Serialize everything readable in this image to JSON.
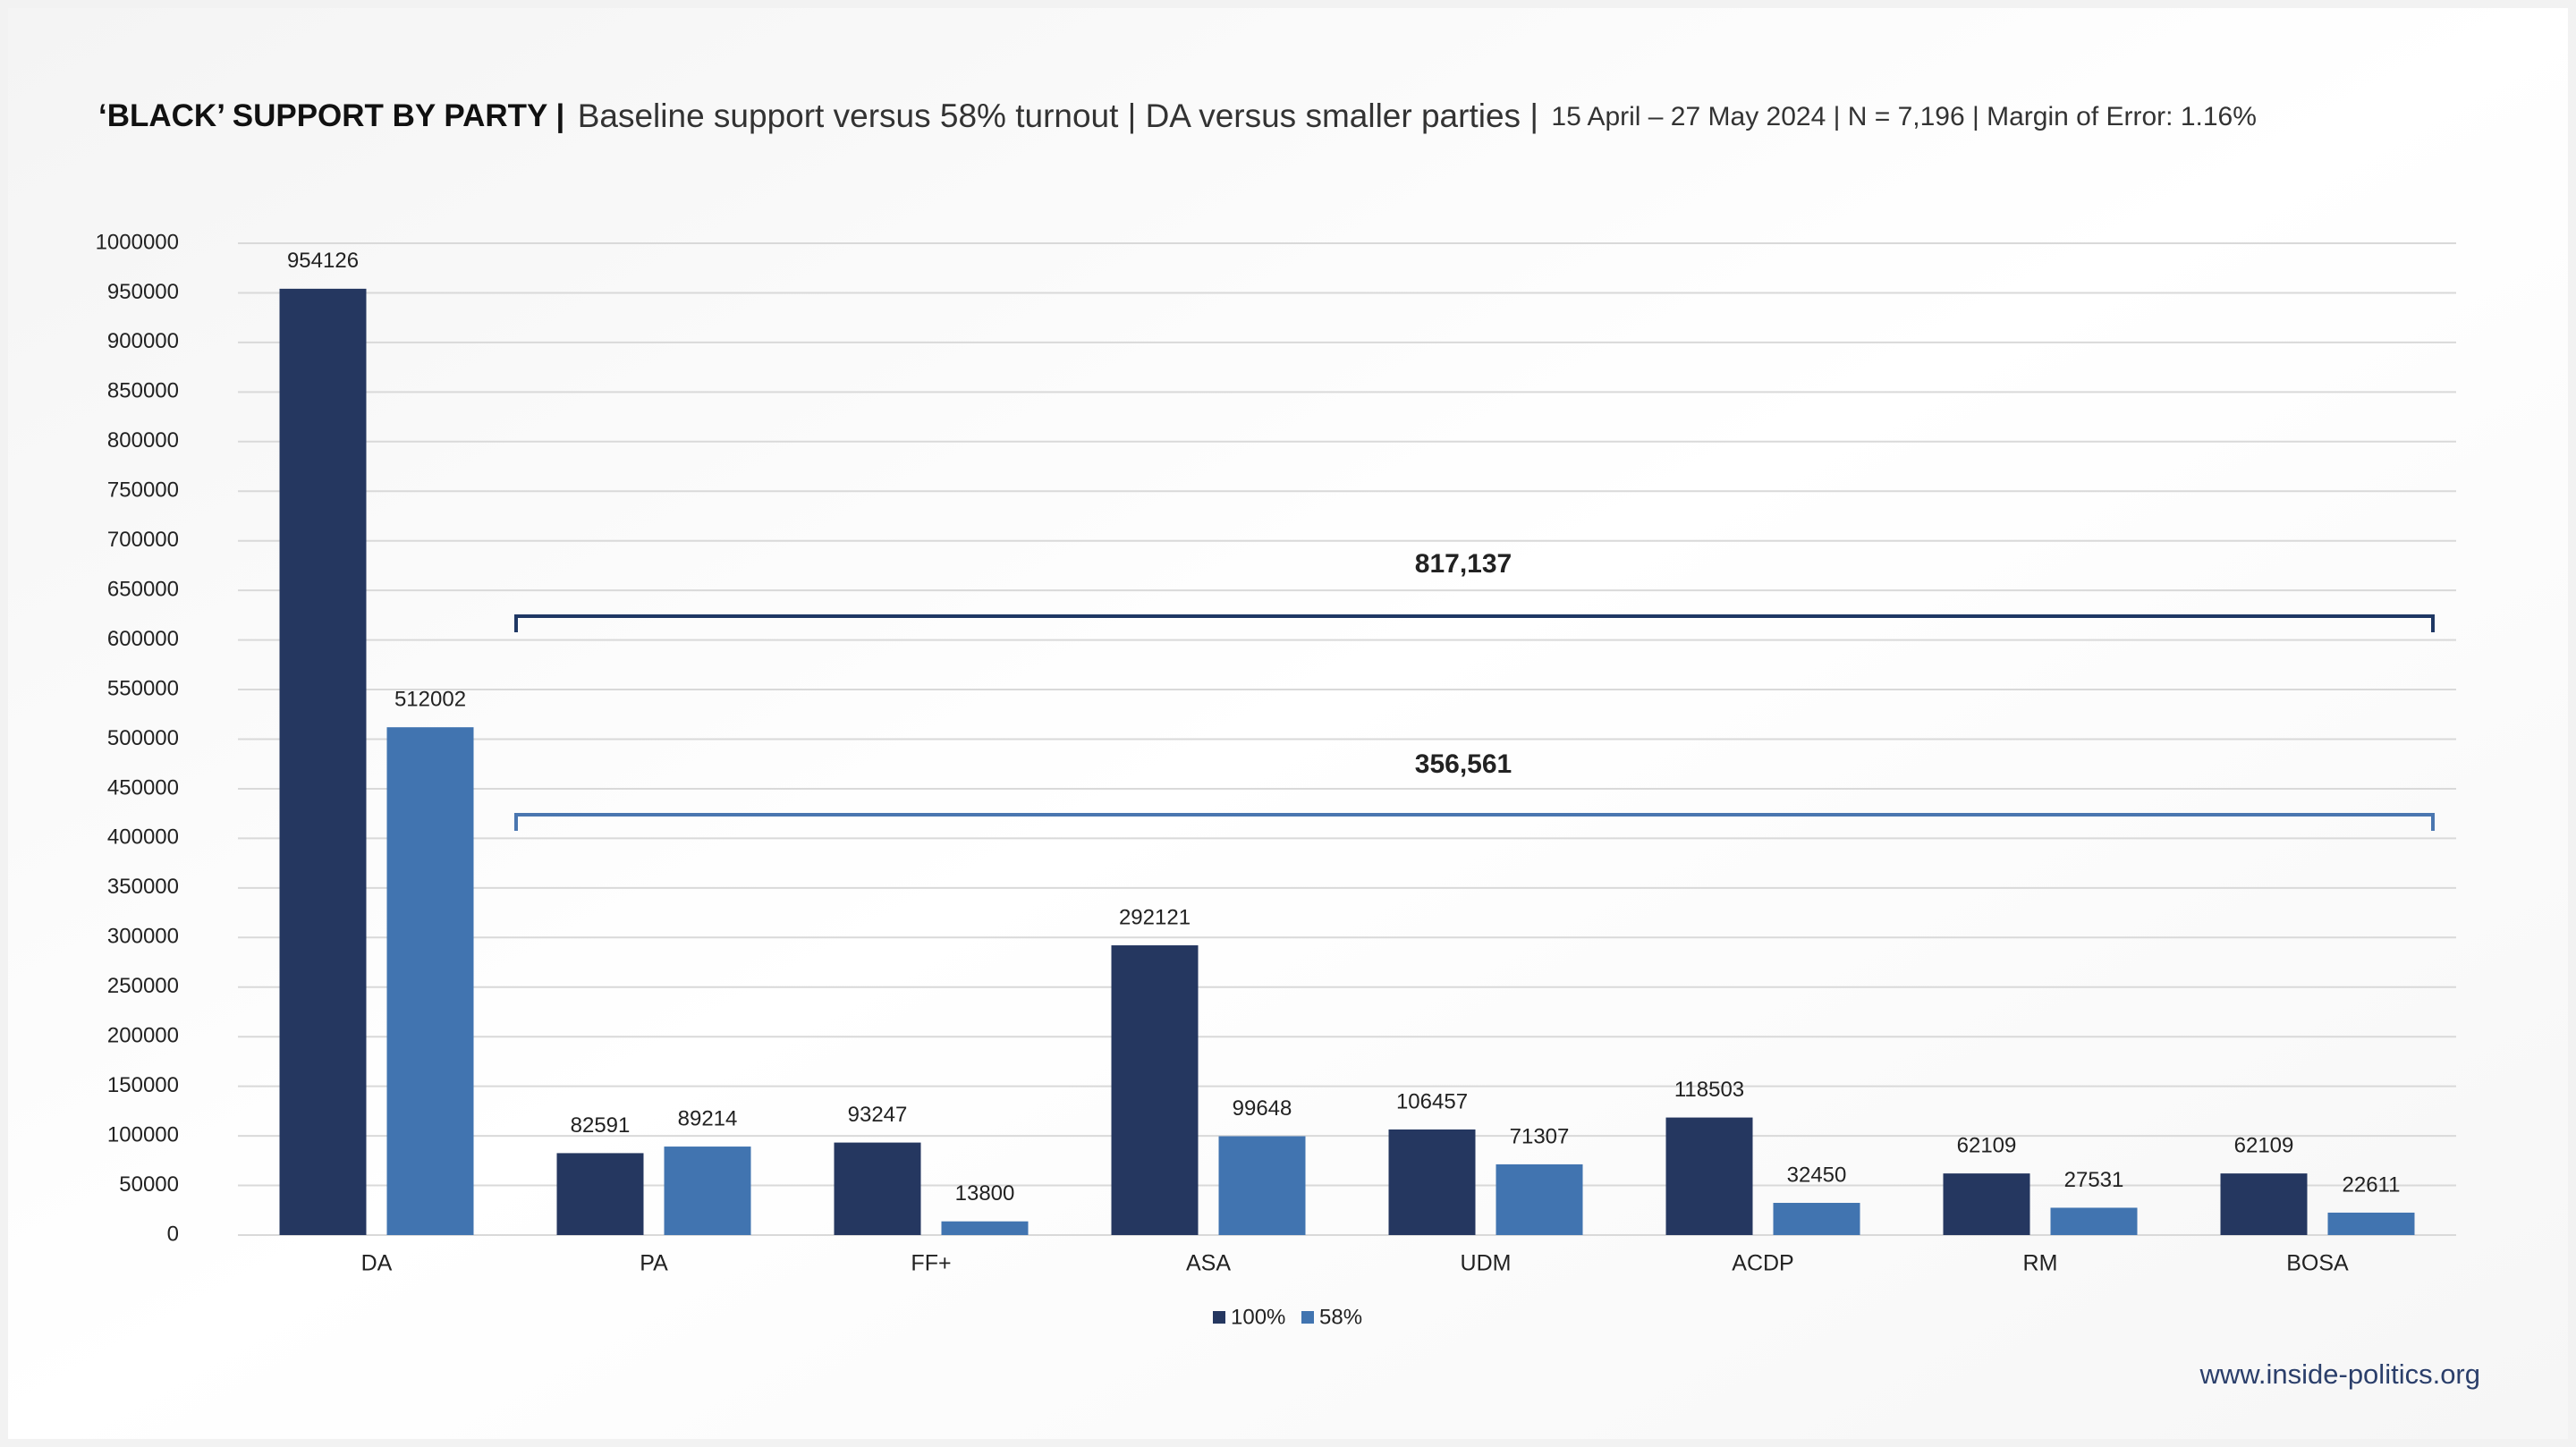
{
  "chart_data": {
    "type": "bar",
    "title": "‘BLACK’ SUPPORT BY PARTY |",
    "subtitle": "Baseline support versus 58% turnout | DA versus smaller parties |",
    "note": "15 April – 27 May 2024 | N = 7,196 | Margin of Error: 1.16%",
    "categories": [
      "DA",
      "PA",
      "FF+",
      "ASA",
      "UDM",
      "ACDP",
      "RM",
      "BOSA"
    ],
    "series": [
      {
        "name": "100%",
        "color": "#253760",
        "values": [
          954126,
          82591,
          93247,
          292121,
          106457,
          118503,
          62109,
          62109
        ]
      },
      {
        "name": "58%",
        "color": "#4174b0",
        "values": [
          512002,
          89214,
          13800,
          99648,
          71307,
          32450,
          27531,
          22611
        ]
      }
    ],
    "ylim": [
      0,
      1000000
    ],
    "yticks": [
      0,
      50000,
      100000,
      150000,
      200000,
      250000,
      300000,
      350000,
      400000,
      450000,
      500000,
      550000,
      600000,
      650000,
      700000,
      750000,
      800000,
      850000,
      900000,
      950000,
      1000000
    ],
    "grid": true,
    "legend": "bottom",
    "annotations": [
      {
        "label": "817,137",
        "color": "#1f3864"
      },
      {
        "label": "356,561",
        "color": "#4a76b0"
      }
    ],
    "source": "www.inside-politics.org"
  }
}
